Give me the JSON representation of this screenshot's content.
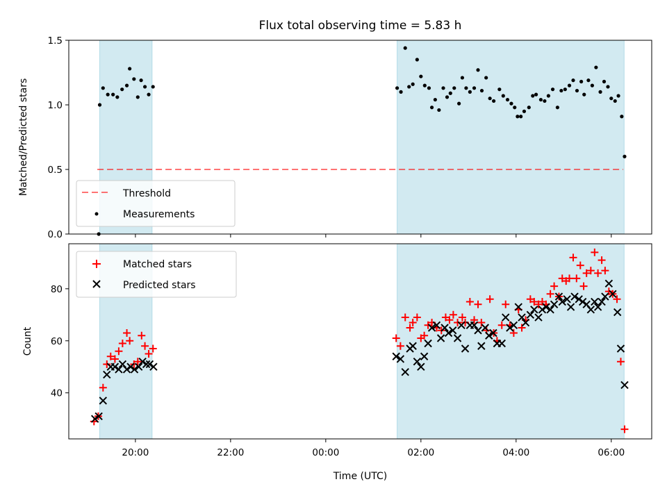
{
  "title": "Flux total observing time = 5.83 h",
  "colors": {
    "band": "#add8e6",
    "threshold": "#ff0000",
    "measurement": "#000000",
    "matched": "#ff0000",
    "predicted": "#000000"
  },
  "chart_data": [
    {
      "type": "scatter",
      "ylabel": "Matched/Predicted stars",
      "xlim_hours": [
        18.6,
        30.85
      ],
      "ylim": [
        0,
        1.5
      ],
      "yticks": [
        "0.0",
        "0.5",
        "1.0",
        "1.5"
      ],
      "legend": {
        "placement": "lower-left",
        "entries": [
          "Threshold",
          "Measurements"
        ]
      },
      "shaded_intervals_hours": [
        [
          19.25,
          20.35
        ],
        [
          25.5,
          30.27
        ]
      ],
      "threshold": {
        "name": "Threshold",
        "value": 0.5,
        "x_start": 19.2,
        "x_end": 30.25
      },
      "series": [
        {
          "name": "Measurements",
          "points": [
            [
              19.23,
              0.0
            ],
            [
              19.25,
              1.0
            ],
            [
              19.32,
              1.13
            ],
            [
              19.42,
              1.08
            ],
            [
              19.53,
              1.08
            ],
            [
              19.62,
              1.06
            ],
            [
              19.72,
              1.12
            ],
            [
              19.82,
              1.15
            ],
            [
              19.88,
              1.28
            ],
            [
              19.97,
              1.2
            ],
            [
              20.05,
              1.06
            ],
            [
              20.12,
              1.19
            ],
            [
              20.2,
              1.14
            ],
            [
              20.28,
              1.08
            ],
            [
              20.37,
              1.14
            ],
            [
              25.5,
              1.13
            ],
            [
              25.58,
              1.1
            ],
            [
              25.67,
              1.44
            ],
            [
              25.75,
              1.14
            ],
            [
              25.83,
              1.16
            ],
            [
              25.92,
              1.35
            ],
            [
              26.0,
              1.22
            ],
            [
              26.08,
              1.15
            ],
            [
              26.17,
              1.13
            ],
            [
              26.23,
              0.98
            ],
            [
              26.3,
              1.04
            ],
            [
              26.38,
              0.96
            ],
            [
              26.47,
              1.13
            ],
            [
              26.55,
              1.06
            ],
            [
              26.62,
              1.09
            ],
            [
              26.7,
              1.13
            ],
            [
              26.8,
              1.01
            ],
            [
              26.87,
              1.21
            ],
            [
              26.95,
              1.13
            ],
            [
              27.03,
              1.1
            ],
            [
              27.12,
              1.13
            ],
            [
              27.2,
              1.27
            ],
            [
              27.28,
              1.11
            ],
            [
              27.37,
              1.21
            ],
            [
              27.45,
              1.05
            ],
            [
              27.53,
              1.03
            ],
            [
              27.65,
              1.12
            ],
            [
              27.73,
              1.07
            ],
            [
              27.82,
              1.04
            ],
            [
              27.9,
              1.01
            ],
            [
              27.97,
              0.98
            ],
            [
              28.03,
              0.91
            ],
            [
              28.1,
              0.91
            ],
            [
              28.17,
              0.95
            ],
            [
              28.27,
              0.98
            ],
            [
              28.35,
              1.07
            ],
            [
              28.42,
              1.08
            ],
            [
              28.52,
              1.04
            ],
            [
              28.6,
              1.03
            ],
            [
              28.68,
              1.07
            ],
            [
              28.77,
              1.12
            ],
            [
              28.87,
              0.98
            ],
            [
              28.95,
              1.11
            ],
            [
              29.03,
              1.12
            ],
            [
              29.12,
              1.15
            ],
            [
              29.2,
              1.19
            ],
            [
              29.28,
              1.11
            ],
            [
              29.37,
              1.18
            ],
            [
              29.43,
              1.08
            ],
            [
              29.52,
              1.19
            ],
            [
              29.6,
              1.15
            ],
            [
              29.68,
              1.29
            ],
            [
              29.77,
              1.1
            ],
            [
              29.85,
              1.18
            ],
            [
              29.93,
              1.14
            ],
            [
              30.0,
              1.05
            ],
            [
              30.08,
              1.03
            ],
            [
              30.15,
              1.07
            ],
            [
              30.22,
              0.91
            ],
            [
              30.28,
              0.6
            ]
          ]
        }
      ]
    },
    {
      "type": "scatter",
      "ylabel": "Count",
      "xlabel": "Time (UTC)",
      "xlim_hours": [
        18.6,
        30.85
      ],
      "ylim": [
        22.3,
        97.3
      ],
      "yticks": [
        "40",
        "60",
        "80"
      ],
      "xticks": [
        {
          "hours": 20,
          "label": "20:00"
        },
        {
          "hours": 22,
          "label": "22:00"
        },
        {
          "hours": 24,
          "label": "00:00"
        },
        {
          "hours": 26,
          "label": "02:00"
        },
        {
          "hours": 28,
          "label": "04:00"
        },
        {
          "hours": 30,
          "label": "06:00"
        }
      ],
      "legend": {
        "placement": "upper-left",
        "entries": [
          "Matched stars",
          "Predicted stars"
        ]
      },
      "shaded_intervals_hours": [
        [
          19.25,
          20.35
        ],
        [
          25.5,
          30.27
        ]
      ],
      "series": [
        {
          "name": "Matched stars",
          "marker": "plus",
          "points": [
            [
              19.13,
              29
            ],
            [
              19.22,
              31
            ],
            [
              19.32,
              42
            ],
            [
              19.4,
              51
            ],
            [
              19.48,
              54
            ],
            [
              19.57,
              53
            ],
            [
              19.65,
              56
            ],
            [
              19.73,
              59
            ],
            [
              19.82,
              63
            ],
            [
              19.88,
              60
            ],
            [
              19.97,
              51
            ],
            [
              20.05,
              52
            ],
            [
              20.13,
              62
            ],
            [
              20.2,
              58
            ],
            [
              20.28,
              55
            ],
            [
              20.37,
              57
            ],
            [
              25.48,
              61
            ],
            [
              25.57,
              58
            ],
            [
              25.67,
              69
            ],
            [
              25.77,
              65
            ],
            [
              25.83,
              67
            ],
            [
              25.92,
              69
            ],
            [
              26.0,
              61
            ],
            [
              26.07,
              62
            ],
            [
              26.15,
              66
            ],
            [
              26.23,
              67
            ],
            [
              26.33,
              65
            ],
            [
              26.43,
              64
            ],
            [
              26.52,
              69
            ],
            [
              26.6,
              68
            ],
            [
              26.68,
              70
            ],
            [
              26.77,
              67
            ],
            [
              26.87,
              69
            ],
            [
              26.93,
              67
            ],
            [
              27.03,
              75
            ],
            [
              27.12,
              68
            ],
            [
              27.2,
              74
            ],
            [
              27.27,
              67
            ],
            [
              27.38,
              64
            ],
            [
              27.45,
              76
            ],
            [
              27.53,
              63
            ],
            [
              27.6,
              60
            ],
            [
              27.7,
              66
            ],
            [
              27.78,
              74
            ],
            [
              27.87,
              66
            ],
            [
              27.95,
              63
            ],
            [
              28.05,
              72
            ],
            [
              28.12,
              65
            ],
            [
              28.2,
              68
            ],
            [
              28.3,
              76
            ],
            [
              28.38,
              75
            ],
            [
              28.47,
              74
            ],
            [
              28.55,
              75
            ],
            [
              28.63,
              74
            ],
            [
              28.72,
              78
            ],
            [
              28.8,
              81
            ],
            [
              28.9,
              77
            ],
            [
              28.97,
              84
            ],
            [
              29.05,
              83
            ],
            [
              29.12,
              84
            ],
            [
              29.2,
              92
            ],
            [
              29.27,
              84
            ],
            [
              29.35,
              89
            ],
            [
              29.42,
              81
            ],
            [
              29.48,
              86
            ],
            [
              29.57,
              87
            ],
            [
              29.65,
              94
            ],
            [
              29.72,
              86
            ],
            [
              29.8,
              91
            ],
            [
              29.87,
              87
            ],
            [
              29.95,
              79
            ],
            [
              30.03,
              78
            ],
            [
              30.12,
              76
            ],
            [
              30.2,
              52
            ],
            [
              30.28,
              26
            ]
          ]
        },
        {
          "name": "Predicted stars",
          "marker": "x",
          "points": [
            [
              19.15,
              30
            ],
            [
              19.23,
              31
            ],
            [
              19.32,
              37
            ],
            [
              19.4,
              47
            ],
            [
              19.48,
              50
            ],
            [
              19.57,
              50
            ],
            [
              19.65,
              49
            ],
            [
              19.73,
              51
            ],
            [
              19.82,
              49
            ],
            [
              19.9,
              50
            ],
            [
              19.98,
              49
            ],
            [
              20.07,
              50
            ],
            [
              20.15,
              52
            ],
            [
              20.23,
              51
            ],
            [
              20.3,
              51
            ],
            [
              20.38,
              50
            ],
            [
              25.48,
              54
            ],
            [
              25.57,
              53
            ],
            [
              25.67,
              48
            ],
            [
              25.77,
              57
            ],
            [
              25.83,
              58
            ],
            [
              25.92,
              52
            ],
            [
              26.0,
              50
            ],
            [
              26.07,
              54
            ],
            [
              26.15,
              59
            ],
            [
              26.23,
              65
            ],
            [
              26.33,
              66
            ],
            [
              26.42,
              61
            ],
            [
              26.5,
              65
            ],
            [
              26.58,
              63
            ],
            [
              26.67,
              64
            ],
            [
              26.77,
              61
            ],
            [
              26.85,
              66
            ],
            [
              26.93,
              57
            ],
            [
              27.03,
              66
            ],
            [
              27.12,
              66
            ],
            [
              27.2,
              64
            ],
            [
              27.27,
              58
            ],
            [
              27.35,
              65
            ],
            [
              27.43,
              62
            ],
            [
              27.52,
              63
            ],
            [
              27.6,
              59
            ],
            [
              27.7,
              59
            ],
            [
              27.78,
              69
            ],
            [
              27.87,
              65
            ],
            [
              27.95,
              66
            ],
            [
              28.05,
              73
            ],
            [
              28.12,
              69
            ],
            [
              28.2,
              67
            ],
            [
              28.3,
              70
            ],
            [
              28.38,
              72
            ],
            [
              28.47,
              69
            ],
            [
              28.55,
              72
            ],
            [
              28.63,
              73
            ],
            [
              28.72,
              72
            ],
            [
              28.8,
              74
            ],
            [
              28.9,
              77
            ],
            [
              28.97,
              75
            ],
            [
              29.07,
              76
            ],
            [
              29.15,
              73
            ],
            [
              29.23,
              77
            ],
            [
              29.32,
              76
            ],
            [
              29.4,
              75
            ],
            [
              29.48,
              74
            ],
            [
              29.57,
              72
            ],
            [
              29.65,
              75
            ],
            [
              29.72,
              73
            ],
            [
              29.8,
              75
            ],
            [
              29.87,
              77
            ],
            [
              29.95,
              82
            ],
            [
              30.03,
              78
            ],
            [
              30.13,
              71
            ],
            [
              30.2,
              57
            ],
            [
              30.28,
              43
            ]
          ]
        }
      ]
    }
  ]
}
